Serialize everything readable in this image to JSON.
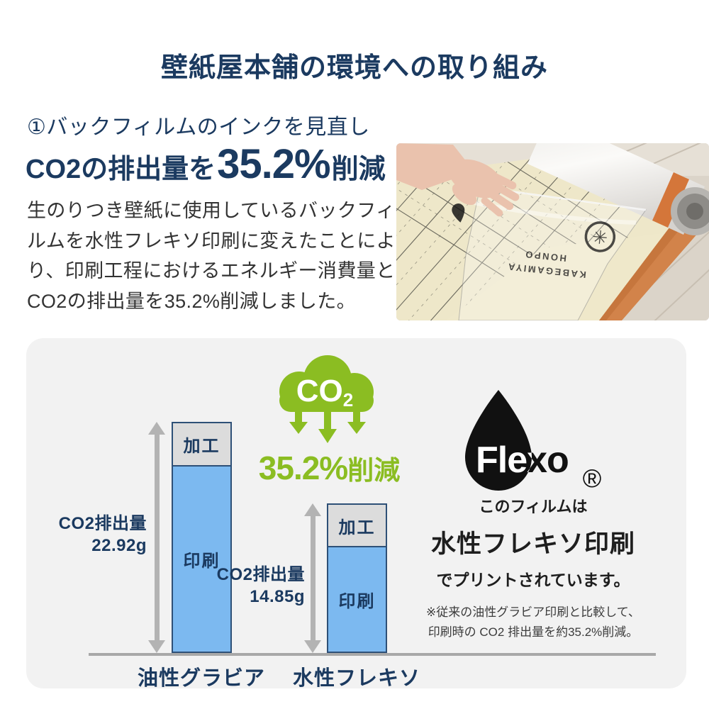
{
  "header": {
    "title": "壁紙屋本舗の環境への取り組み"
  },
  "section": {
    "heading": "①バックフィルムのインクを見直し",
    "headline": {
      "prefix": "CO2の排出量を",
      "value": "35.2%",
      "suffix": "削減"
    },
    "body": "生のりつき壁紙に使用しているバックフィルムを水性フレキソ印刷に変えたことにより、印刷工程におけるエネルギー消費量とCO2の排出量を35.2%削減しました。"
  },
  "photo": {
    "film_text_line1": "KABEGAMIYA",
    "film_text_line2": "HONPO"
  },
  "infographic": {
    "cloud": {
      "gas": "CO",
      "gas_sub": "2"
    },
    "reduction": {
      "value": "35.2%",
      "suffix": "削減"
    },
    "flexo": {
      "logo": "Flexo",
      "registered": "®",
      "line1": "このフィルムは",
      "line2": "水性フレキソ印刷",
      "line3": "でプリントされています。",
      "note1": "※従来の油性グラビア印刷と比較して、",
      "note2": "印刷時の CO2 排出量を約35.2%削減。"
    }
  },
  "chart_data": {
    "type": "bar",
    "stacked": true,
    "categories": [
      "油性グラビア",
      "水性フレキソ"
    ],
    "series": [
      {
        "name": "加工",
        "color": "#dcdcdc",
        "values": [
          4.3,
          4.25
        ]
      },
      {
        "name": "印刷",
        "color": "#7cb9f0",
        "values": [
          18.62,
          10.6
        ]
      }
    ],
    "totals": [
      {
        "label": "CO2排出量",
        "value": "22.92g"
      },
      {
        "label": "CO2排出量",
        "value": "14.85g"
      }
    ],
    "unit": "g",
    "ylim": [
      0,
      24
    ],
    "grid": false,
    "legend": "none",
    "colors": {
      "navy": "#1b3a60",
      "green": "#8bbd22",
      "bar_blue": "#7cb9f0",
      "bar_gray": "#dcdcdc",
      "bar_border": "#2e5077",
      "panel_bg": "#f2f2f2"
    }
  }
}
